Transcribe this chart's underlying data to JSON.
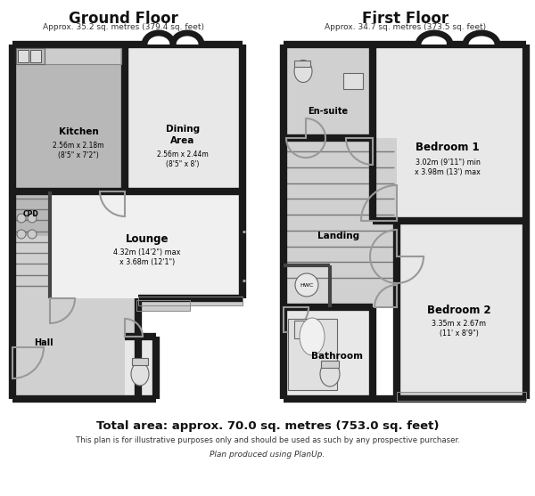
{
  "bg_color": "#ffffff",
  "wall_color": "#1a1a1a",
  "room_fill_light": "#e8e8e8",
  "room_fill_mid": "#d0d0d0",
  "room_fill_dark": "#b8b8b8",
  "title_ground": "Ground Floor",
  "subtitle_ground": "Approx. 35.2 sq. metres (379.4 sq. feet)",
  "title_first": "First Floor",
  "subtitle_first": "Approx. 34.7 sq. metres (373.5 sq. feet)",
  "total_area": "Total area: approx. 70.0 sq. metres (753.0 sq. feet)",
  "disclaimer": "This plan is for illustrative purposes only and should be used as such by any prospective purchaser.",
  "credit": "Plan produced using PlanUp."
}
